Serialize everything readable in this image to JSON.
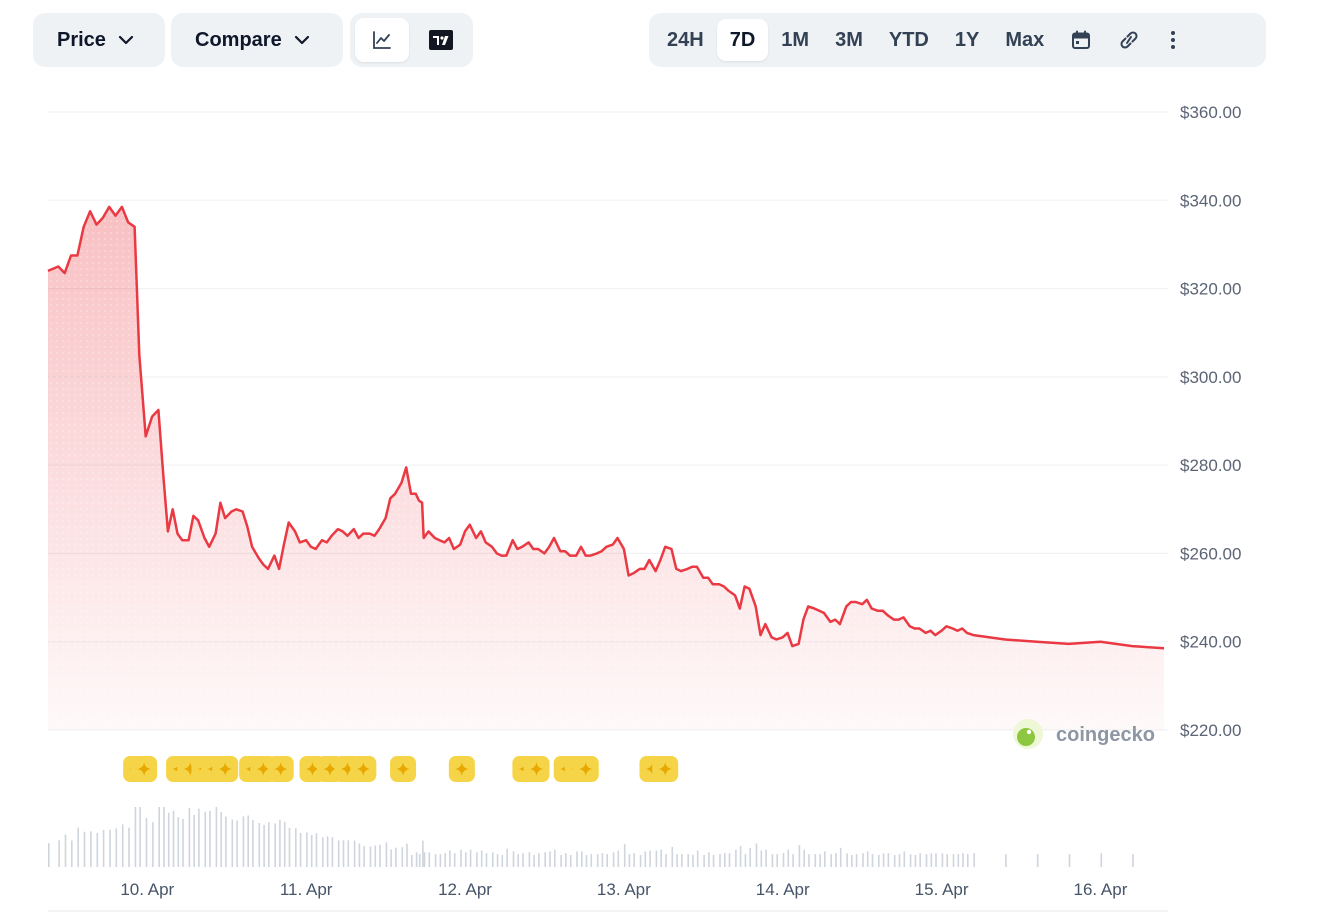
{
  "toolbar": {
    "price_label": "Price",
    "compare_label": "Compare",
    "chart_types": [
      {
        "icon": "line-chart-icon",
        "active": true
      },
      {
        "icon": "tradingview-icon",
        "active": false
      }
    ],
    "ranges": [
      "24H",
      "7D",
      "1M",
      "3M",
      "YTD",
      "1Y",
      "Max"
    ],
    "active_range": "7D",
    "extra_icons": [
      "calendar-icon",
      "link-icon",
      "more-vertical-icon"
    ]
  },
  "brand": {
    "name": "coingecko"
  },
  "colors": {
    "line": "#ea3943",
    "fill": "#ea3943",
    "marker": "#f5d547",
    "marker_star": "#e8a800",
    "grid": "#eef0f3",
    "volume": "#cfd5dc"
  },
  "chart_data": {
    "type": "area",
    "y_ticks": [
      "$360.00",
      "$340.00",
      "$320.00",
      "$300.00",
      "$280.00",
      "$260.00",
      "$240.00",
      "$220.00"
    ],
    "y_values": [
      360,
      340,
      320,
      300,
      280,
      260,
      240,
      220
    ],
    "ylim": [
      220,
      360
    ],
    "x_ticks": [
      "10. Apr",
      "11. Apr",
      "12. Apr",
      "13. Apr",
      "14. Apr",
      "15. Apr",
      "16. Apr"
    ],
    "x_tick_days": [
      1,
      2,
      3,
      4,
      5,
      6,
      7
    ],
    "xlim_days": [
      0.375,
      7.4
    ],
    "grid": true,
    "series": [
      {
        "points": [
          [
            0.375,
            324
          ],
          [
            0.44,
            325
          ],
          [
            0.48,
            323.5
          ],
          [
            0.52,
            327.5
          ],
          [
            0.56,
            327.5
          ],
          [
            0.6,
            334
          ],
          [
            0.64,
            337.5
          ],
          [
            0.68,
            334.5
          ],
          [
            0.72,
            336
          ],
          [
            0.76,
            338.5
          ],
          [
            0.8,
            336.5
          ],
          [
            0.84,
            338.5
          ],
          [
            0.88,
            335
          ],
          [
            0.92,
            334
          ],
          [
            0.95,
            305
          ],
          [
            0.99,
            286.5
          ],
          [
            1.03,
            291
          ],
          [
            1.07,
            292.5
          ],
          [
            1.1,
            278
          ],
          [
            1.13,
            265
          ],
          [
            1.16,
            270
          ],
          [
            1.19,
            264.5
          ],
          [
            1.22,
            263
          ],
          [
            1.26,
            263
          ],
          [
            1.29,
            268.5
          ],
          [
            1.32,
            267.5
          ],
          [
            1.36,
            263.5
          ],
          [
            1.39,
            261.5
          ],
          [
            1.43,
            264.5
          ],
          [
            1.46,
            271.5
          ],
          [
            1.49,
            268
          ],
          [
            1.53,
            269.5
          ],
          [
            1.56,
            270
          ],
          [
            1.6,
            269.5
          ],
          [
            1.63,
            266
          ],
          [
            1.66,
            261.5
          ],
          [
            1.7,
            259
          ],
          [
            1.73,
            257.5
          ],
          [
            1.76,
            256.5
          ],
          [
            1.8,
            259.5
          ],
          [
            1.83,
            256.5
          ],
          [
            1.86,
            262
          ],
          [
            1.89,
            267
          ],
          [
            1.93,
            265
          ],
          [
            1.96,
            262.5
          ],
          [
            2.0,
            263
          ],
          [
            2.03,
            261.5
          ],
          [
            2.06,
            261
          ],
          [
            2.1,
            263
          ],
          [
            2.13,
            262.5
          ],
          [
            2.16,
            264
          ],
          [
            2.2,
            265.5
          ],
          [
            2.23,
            265
          ],
          [
            2.26,
            264
          ],
          [
            2.3,
            265.5
          ],
          [
            2.33,
            263.5
          ],
          [
            2.36,
            264.5
          ],
          [
            2.4,
            264.5
          ],
          [
            2.43,
            264
          ],
          [
            2.46,
            265.5
          ],
          [
            2.5,
            268
          ],
          [
            2.53,
            272.5
          ],
          [
            2.56,
            273.5
          ],
          [
            2.6,
            276
          ],
          [
            2.63,
            279.5
          ],
          [
            2.66,
            273.5
          ],
          [
            2.69,
            273.5
          ],
          [
            2.71,
            272
          ],
          [
            2.73,
            271.5
          ],
          [
            2.74,
            263.5
          ],
          [
            2.77,
            265
          ],
          [
            2.81,
            263.5
          ],
          [
            2.84,
            263
          ],
          [
            2.87,
            262.5
          ],
          [
            2.9,
            263.5
          ],
          [
            2.93,
            261
          ],
          [
            2.97,
            262
          ],
          [
            3.0,
            265
          ],
          [
            3.03,
            266.5
          ],
          [
            3.07,
            263.5
          ],
          [
            3.1,
            265
          ],
          [
            3.13,
            262.5
          ],
          [
            3.17,
            261.5
          ],
          [
            3.2,
            260
          ],
          [
            3.23,
            259.5
          ],
          [
            3.26,
            259.5
          ],
          [
            3.3,
            263
          ],
          [
            3.33,
            261
          ],
          [
            3.36,
            261.5
          ],
          [
            3.4,
            262.5
          ],
          [
            3.43,
            261
          ],
          [
            3.46,
            261
          ],
          [
            3.5,
            260
          ],
          [
            3.53,
            261.5
          ],
          [
            3.56,
            263.5
          ],
          [
            3.6,
            260.5
          ],
          [
            3.63,
            260.5
          ],
          [
            3.66,
            259.5
          ],
          [
            3.7,
            259.5
          ],
          [
            3.73,
            261.5
          ],
          [
            3.76,
            259.5
          ],
          [
            3.79,
            259.5
          ],
          [
            3.83,
            260
          ],
          [
            3.86,
            260.5
          ],
          [
            3.89,
            261.5
          ],
          [
            3.93,
            262
          ],
          [
            3.96,
            263.5
          ],
          [
            4.0,
            261
          ],
          [
            4.03,
            255
          ],
          [
            4.06,
            255.5
          ],
          [
            4.1,
            256.5
          ],
          [
            4.13,
            256.5
          ],
          [
            4.16,
            258.5
          ],
          [
            4.2,
            256
          ],
          [
            4.23,
            258.5
          ],
          [
            4.26,
            261.5
          ],
          [
            4.3,
            261
          ],
          [
            4.33,
            256.5
          ],
          [
            4.36,
            256
          ],
          [
            4.4,
            256.5
          ],
          [
            4.43,
            257
          ],
          [
            4.46,
            257
          ],
          [
            4.5,
            254.5
          ],
          [
            4.53,
            254.5
          ],
          [
            4.56,
            253
          ],
          [
            4.6,
            253
          ],
          [
            4.63,
            252.5
          ],
          [
            4.66,
            251.5
          ],
          [
            4.7,
            250.5
          ],
          [
            4.73,
            247.5
          ],
          [
            4.76,
            252.5
          ],
          [
            4.79,
            252
          ],
          [
            4.83,
            248
          ],
          [
            4.86,
            241.5
          ],
          [
            4.89,
            244
          ],
          [
            4.93,
            241
          ],
          [
            4.96,
            240.5
          ],
          [
            5.0,
            241
          ],
          [
            5.03,
            242
          ],
          [
            5.06,
            239
          ],
          [
            5.1,
            239.5
          ],
          [
            5.13,
            245
          ],
          [
            5.16,
            248
          ],
          [
            5.2,
            247.5
          ],
          [
            5.23,
            247
          ],
          [
            5.26,
            246.5
          ],
          [
            5.3,
            244.5
          ],
          [
            5.33,
            245
          ],
          [
            5.36,
            244
          ],
          [
            5.4,
            248
          ],
          [
            5.43,
            249
          ],
          [
            5.46,
            249
          ],
          [
            5.5,
            248.5
          ],
          [
            5.53,
            249.5
          ],
          [
            5.56,
            247.5
          ],
          [
            5.6,
            247
          ],
          [
            5.63,
            247
          ],
          [
            5.66,
            246
          ],
          [
            5.7,
            245
          ],
          [
            5.73,
            245
          ],
          [
            5.76,
            245.5
          ],
          [
            5.8,
            243.5
          ],
          [
            5.83,
            243
          ],
          [
            5.86,
            243
          ],
          [
            5.9,
            242
          ],
          [
            5.93,
            242.5
          ],
          [
            5.96,
            241.5
          ],
          [
            6.0,
            242.5
          ],
          [
            6.03,
            243.5
          ],
          [
            6.07,
            243
          ],
          [
            6.1,
            242.5
          ],
          [
            6.13,
            243
          ],
          [
            6.16,
            242
          ],
          [
            6.2,
            241.5
          ],
          [
            6.4,
            240.5
          ],
          [
            6.6,
            240
          ],
          [
            6.8,
            239.5
          ],
          [
            7.0,
            240
          ],
          [
            7.2,
            239
          ],
          [
            7.4,
            238.5
          ]
        ]
      }
    ],
    "event_marker_days": [
      0.93,
      0.98,
      1.2,
      1.27,
      1.36,
      1.42,
      1.49,
      1.66,
      1.73,
      1.84,
      2.04,
      2.15,
      2.26,
      2.36,
      2.61,
      2.98,
      3.38,
      3.45,
      3.64,
      3.71,
      3.76,
      4.18,
      4.26
    ]
  }
}
